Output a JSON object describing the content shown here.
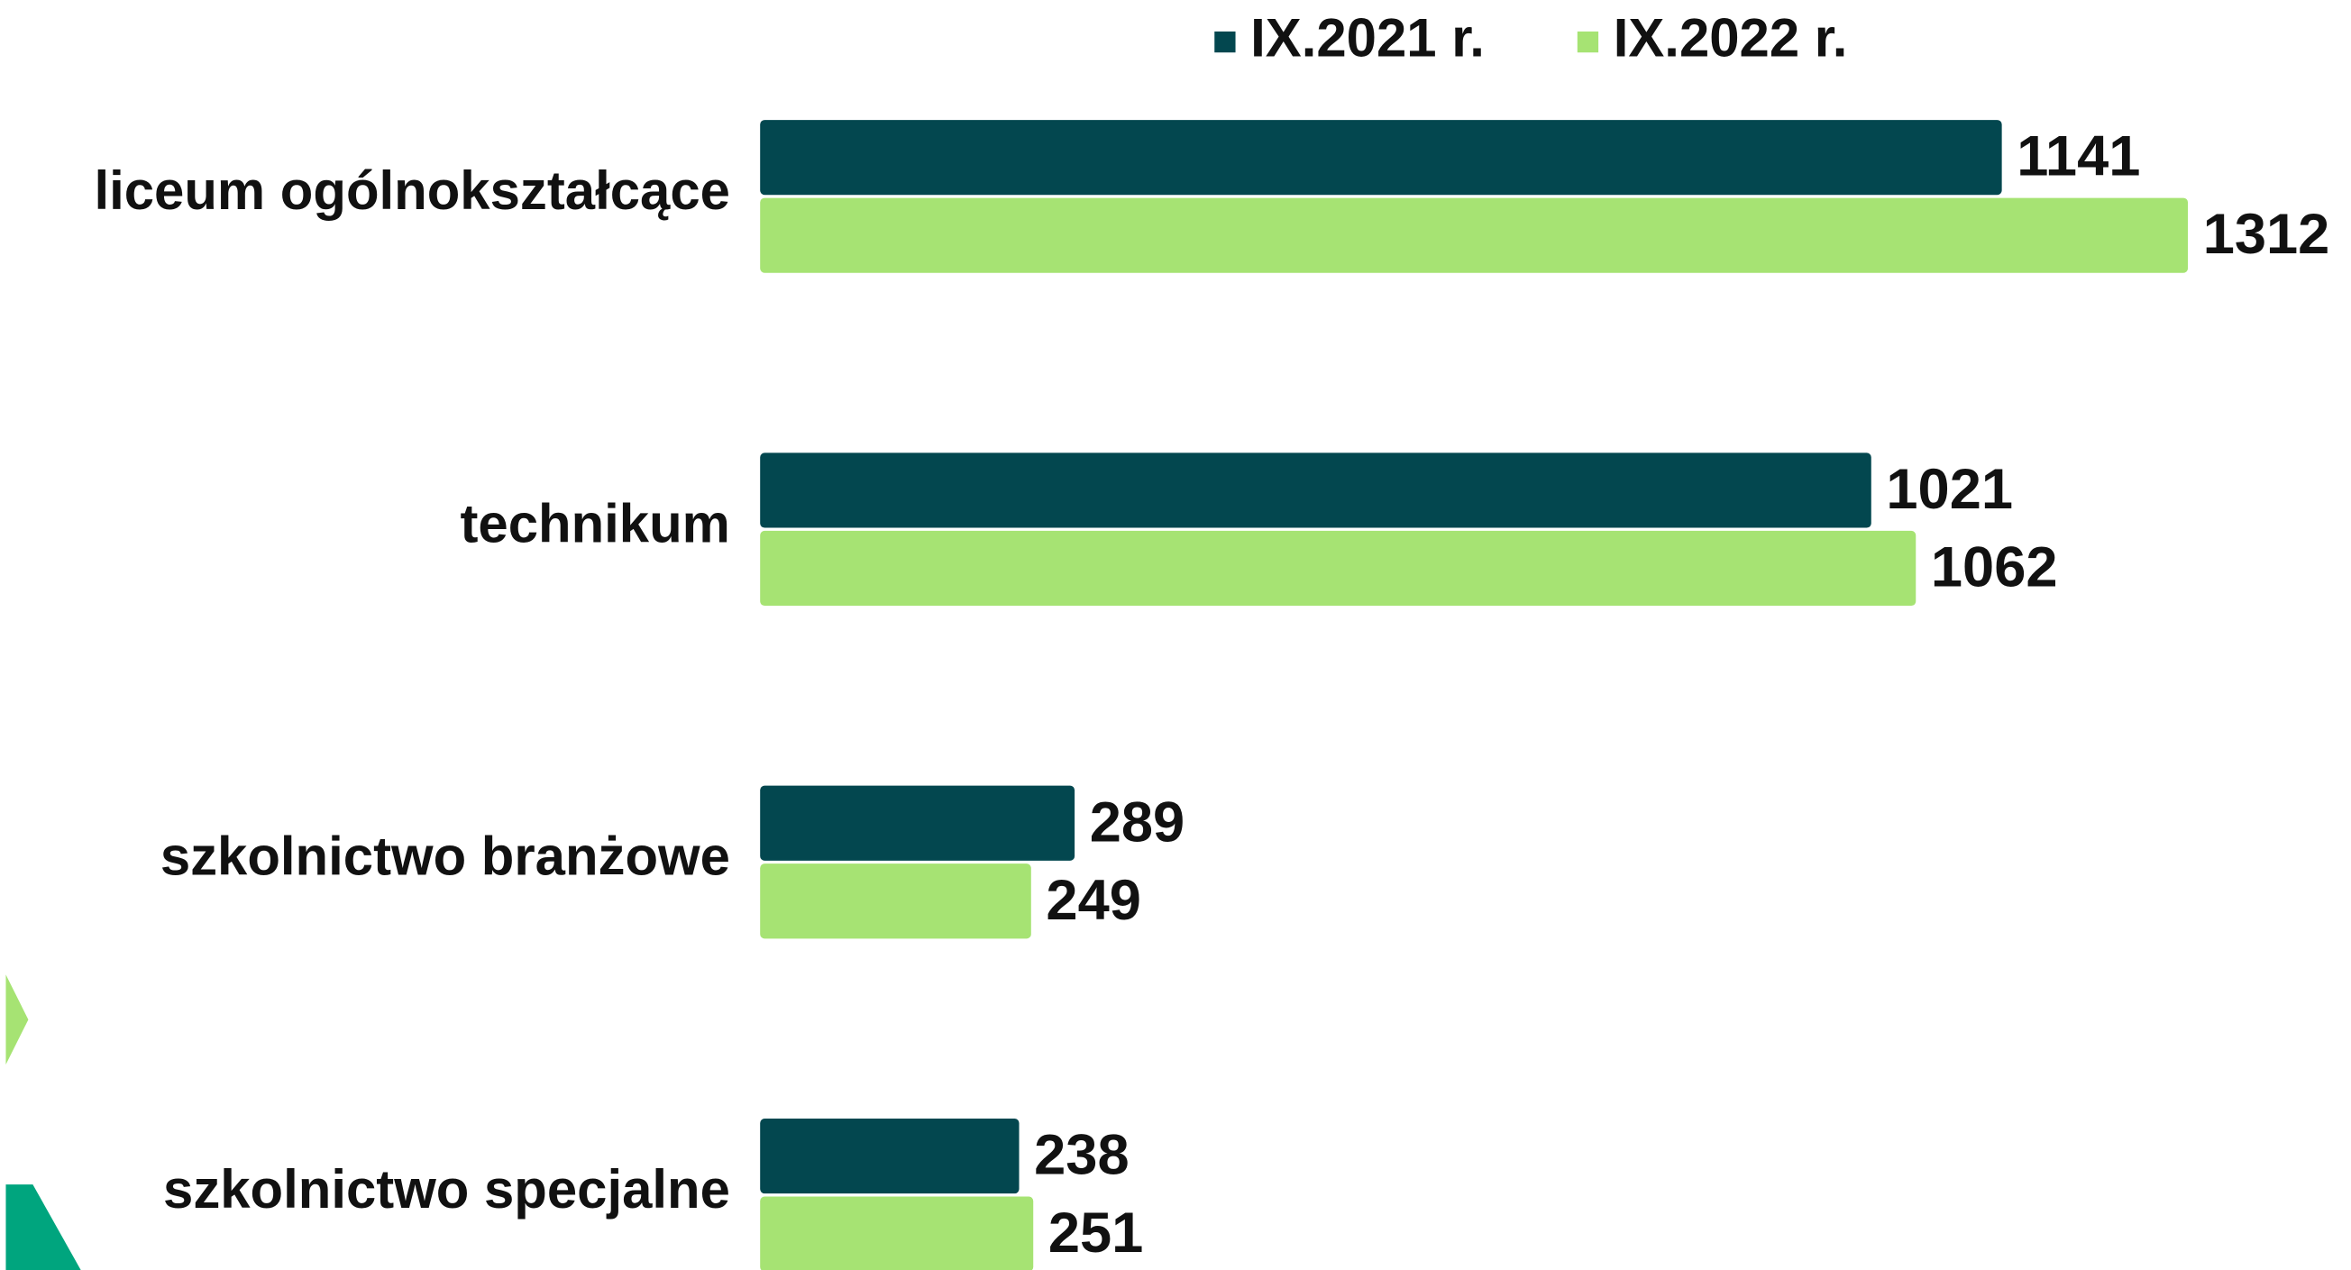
{
  "chart_data": {
    "type": "bar",
    "orientation": "horizontal",
    "categories": [
      "liceum ogólnokształcące",
      "technikum",
      "szkolnictwo branżowe",
      "szkolnictwo specjalne"
    ],
    "series": [
      {
        "name": "IX.2021 r.",
        "color": "#03474f",
        "values": [
          1141,
          1021,
          289,
          238
        ]
      },
      {
        "name": "IX.2022 r.",
        "color": "#a6e373",
        "values": [
          1312,
          1062,
          249,
          251
        ]
      }
    ],
    "legend": "top"
  }
}
